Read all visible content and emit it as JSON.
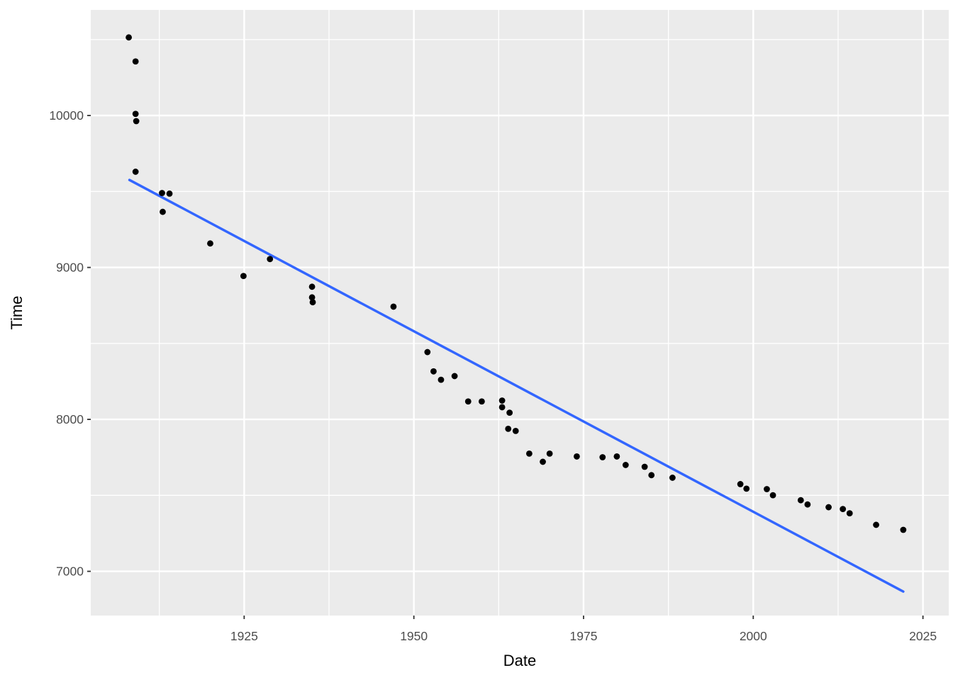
{
  "chart_data": {
    "type": "scatter",
    "title": "",
    "xlabel": "Date",
    "ylabel": "Time",
    "x_ticks": [
      1925,
      1950,
      1975,
      2000,
      2025
    ],
    "x_minor_ticks": [
      1912.5,
      1937.5,
      1962.5,
      1987.5,
      2012.5
    ],
    "y_ticks": [
      7000,
      8000,
      9000,
      10000
    ],
    "y_minor_ticks": [
      7500,
      8500,
      9500,
      10500
    ],
    "xlim": [
      1902.4,
      2028.8
    ],
    "ylim": [
      6709,
      10695
    ],
    "grid": true,
    "legend": false,
    "points": [
      [
        1908.0,
        10514
      ],
      [
        1909.0,
        10356
      ],
      [
        1909.0,
        10011
      ],
      [
        1909.1,
        9963
      ],
      [
        1909.0,
        9630
      ],
      [
        1912.9,
        9490
      ],
      [
        1914.0,
        9486
      ],
      [
        1913.0,
        9366
      ],
      [
        1920.0,
        9158
      ],
      [
        1924.9,
        8944
      ],
      [
        1928.8,
        9055
      ],
      [
        1935.0,
        8873
      ],
      [
        1935.0,
        8803
      ],
      [
        1935.1,
        8771
      ],
      [
        1947.0,
        8742
      ],
      [
        1952.0,
        8443
      ],
      [
        1952.9,
        8316
      ],
      [
        1954.0,
        8261
      ],
      [
        1956.0,
        8285
      ],
      [
        1958.0,
        8118
      ],
      [
        1960.0,
        8118
      ],
      [
        1963.0,
        8124
      ],
      [
        1963.0,
        8080
      ],
      [
        1964.1,
        8044
      ],
      [
        1963.9,
        7938
      ],
      [
        1965.0,
        7924
      ],
      [
        1967.0,
        7775
      ],
      [
        1969.0,
        7721
      ],
      [
        1970.0,
        7775
      ],
      [
        1974.0,
        7756
      ],
      [
        1977.8,
        7751
      ],
      [
        1979.9,
        7756
      ],
      [
        1981.2,
        7700
      ],
      [
        1984.0,
        7688
      ],
      [
        1985.0,
        7633
      ],
      [
        1988.1,
        7616
      ],
      [
        1998.1,
        7574
      ],
      [
        1999.0,
        7544
      ],
      [
        2002.0,
        7541
      ],
      [
        2002.9,
        7501
      ],
      [
        2007.0,
        7468
      ],
      [
        2008.0,
        7440
      ],
      [
        2011.1,
        7422
      ],
      [
        2013.2,
        7410
      ],
      [
        2014.2,
        7382
      ],
      [
        2018.1,
        7306
      ],
      [
        2022.1,
        7273
      ]
    ],
    "trend_line": {
      "x1": 1908.1,
      "y1": 9576,
      "x2": 2022.1,
      "y2": 6867
    },
    "colors": {
      "background": "#FFFFFF",
      "panel": "#EBEBEB",
      "grid_major": "#FFFFFF",
      "grid_minor": "#FFFFFF",
      "point": "#000000",
      "trend": "#3366FF",
      "tick_mark": "#333333",
      "tick_label": "#4D4D4D",
      "axis_title": "#000000"
    }
  }
}
